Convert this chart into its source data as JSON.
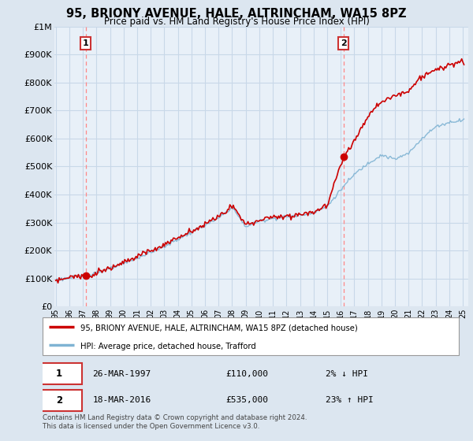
{
  "title": "95, BRIONY AVENUE, HALE, ALTRINCHAM, WA15 8PZ",
  "subtitle": "Price paid vs. HM Land Registry's House Price Index (HPI)",
  "ylim": [
    0,
    1000000
  ],
  "yticks": [
    0,
    100000,
    200000,
    300000,
    400000,
    500000,
    600000,
    700000,
    800000,
    900000,
    1000000
  ],
  "ytick_labels": [
    "£0",
    "£100K",
    "£200K",
    "£300K",
    "£400K",
    "£500K",
    "£600K",
    "£700K",
    "£800K",
    "£900K",
    "£1M"
  ],
  "sale1_year": 1997.21,
  "sale1_price": 110000,
  "sale1_label": "1",
  "sale1_date": "26-MAR-1997",
  "sale1_amount": "£110,000",
  "sale1_hpi": "2% ↓ HPI",
  "sale2_year": 2016.21,
  "sale2_price": 535000,
  "sale2_label": "2",
  "sale2_date": "18-MAR-2016",
  "sale2_amount": "£535,000",
  "sale2_hpi": "23% ↑ HPI",
  "legend_line1": "95, BRIONY AVENUE, HALE, ALTRINCHAM, WA15 8PZ (detached house)",
  "legend_line2": "HPI: Average price, detached house, Trafford",
  "footer": "Contains HM Land Registry data © Crown copyright and database right 2024.\nThis data is licensed under the Open Government Licence v3.0.",
  "property_color": "#cc0000",
  "hpi_color": "#7fb3d3",
  "bg_color": "#dce6f0",
  "plot_bg": "#e8f0f8",
  "grid_color": "#c8d8e8",
  "dashed_line_color": "#ff8888",
  "x_tick_labels": [
    "95",
    "96",
    "97",
    "98",
    "99",
    "00",
    "01",
    "02",
    "03",
    "04",
    "05",
    "06",
    "07",
    "08",
    "09",
    "10",
    "11",
    "12",
    "13",
    "14",
    "15",
    "16",
    "17",
    "18",
    "19",
    "20",
    "21",
    "22",
    "23",
    "24",
    "25"
  ],
  "x_ticks": [
    1995,
    1996,
    1997,
    1998,
    1999,
    2000,
    2001,
    2002,
    2003,
    2004,
    2005,
    2006,
    2007,
    2008,
    2009,
    2010,
    2011,
    2012,
    2013,
    2014,
    2015,
    2016,
    2017,
    2018,
    2019,
    2020,
    2021,
    2022,
    2023,
    2024,
    2025
  ]
}
